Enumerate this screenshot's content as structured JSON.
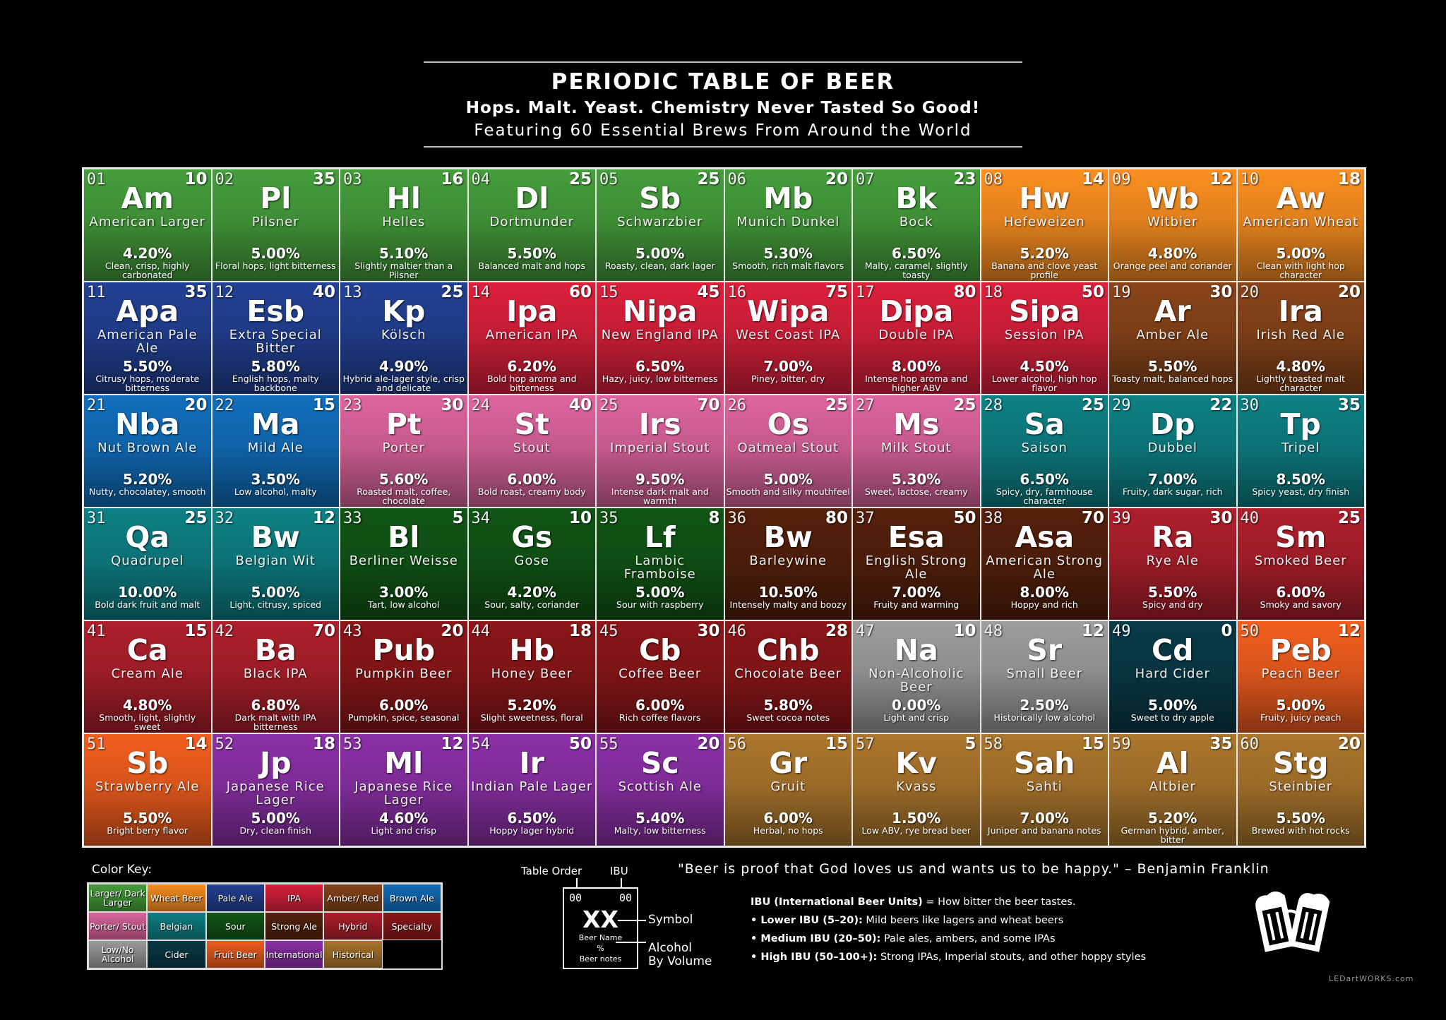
{
  "header": {
    "title": "PERIODIC TABLE OF BEER",
    "subtitle": "Hops. Malt. Yeast. Chemistry Never Tasted So Good!",
    "tagline": "Featuring 60 Essential Brews From Around the World"
  },
  "category_colors": {
    "larger": "#3e8d35",
    "wheat": "#e0801d",
    "pale": "#1f3a85",
    "ipa": "#c41d36",
    "amber": "#7a3d17",
    "brown": "#0f63a8",
    "porter": "#c65a8d",
    "belgian": "#0c7377",
    "sour": "#0f4d14",
    "strong": "#4b1d0a",
    "hybrid": "#9b1c27",
    "specialty": "#7d1416",
    "lowno": "#8d8d8d",
    "cider": "#083440",
    "fruit": "#d8541b",
    "international": "#7d2b96",
    "historical": "#9a6a28"
  },
  "beers": [
    {
      "num": "01",
      "ibu": "10",
      "sym": "Am",
      "name": "American Larger",
      "abv": "4.20%",
      "notes": "Clean, crisp, highly carbonated",
      "cat": "larger"
    },
    {
      "num": "02",
      "ibu": "35",
      "sym": "Pl",
      "name": "Pilsner",
      "abv": "5.00%",
      "notes": "Floral hops, light bitterness",
      "cat": "larger"
    },
    {
      "num": "03",
      "ibu": "16",
      "sym": "Hl",
      "name": "Helles",
      "abv": "5.10%",
      "notes": "Slightly maltier than a Pilsner",
      "cat": "larger"
    },
    {
      "num": "04",
      "ibu": "25",
      "sym": "Dl",
      "name": "Dortmunder",
      "abv": "5.50%",
      "notes": "Balanced malt and hops",
      "cat": "larger"
    },
    {
      "num": "05",
      "ibu": "25",
      "sym": "Sb",
      "name": "Schwarzbier",
      "abv": "5.00%",
      "notes": "Roasty, clean, dark lager",
      "cat": "larger"
    },
    {
      "num": "06",
      "ibu": "20",
      "sym": "Mb",
      "name": "Munich Dunkel",
      "abv": "5.30%",
      "notes": "Smooth, rich malt flavors",
      "cat": "larger"
    },
    {
      "num": "07",
      "ibu": "23",
      "sym": "Bk",
      "name": "Bock",
      "abv": "6.50%",
      "notes": "Malty, caramel, slightly toasty",
      "cat": "larger"
    },
    {
      "num": "08",
      "ibu": "14",
      "sym": "Hw",
      "name": "Hefeweizen",
      "abv": "5.20%",
      "notes": "Banana and clove yeast profile",
      "cat": "wheat"
    },
    {
      "num": "09",
      "ibu": "12",
      "sym": "Wb",
      "name": "Witbier",
      "abv": "4.80%",
      "notes": "Orange peel and coriander",
      "cat": "wheat"
    },
    {
      "num": "10",
      "ibu": "18",
      "sym": "Aw",
      "name": "American Wheat",
      "abv": "5.00%",
      "notes": "Clean with light hop character",
      "cat": "wheat"
    },
    {
      "num": "11",
      "ibu": "35",
      "sym": "Apa",
      "name": "American Pale Ale",
      "abv": "5.50%",
      "notes": "Citrusy hops, moderate bitterness",
      "cat": "pale"
    },
    {
      "num": "12",
      "ibu": "40",
      "sym": "Esb",
      "name": "Extra Special Bitter",
      "abv": "5.80%",
      "notes": "English hops, malty backbone",
      "cat": "pale"
    },
    {
      "num": "13",
      "ibu": "25",
      "sym": "Kp",
      "name": "Kölsch",
      "abv": "4.90%",
      "notes": "Hybrid ale-lager style, crisp and delicate",
      "cat": "pale"
    },
    {
      "num": "14",
      "ibu": "60",
      "sym": "Ipa",
      "name": "American IPA",
      "abv": "6.20%",
      "notes": "Bold hop aroma and bitterness",
      "cat": "ipa"
    },
    {
      "num": "15",
      "ibu": "45",
      "sym": "Nipa",
      "name": "New England IPA",
      "abv": "6.50%",
      "notes": "Hazy, juicy, low bitterness",
      "cat": "ipa"
    },
    {
      "num": "16",
      "ibu": "75",
      "sym": "Wipa",
      "name": "West Coast IPA",
      "abv": "7.00%",
      "notes": "Piney, bitter, dry",
      "cat": "ipa"
    },
    {
      "num": "17",
      "ibu": "80",
      "sym": "Dipa",
      "name": "Double IPA",
      "abv": "8.00%",
      "notes": "Intense hop aroma and higher ABV",
      "cat": "ipa"
    },
    {
      "num": "18",
      "ibu": "50",
      "sym": "Sipa",
      "name": "Session IPA",
      "abv": "4.50%",
      "notes": "Lower alcohol, high hop flavor",
      "cat": "ipa"
    },
    {
      "num": "19",
      "ibu": "30",
      "sym": "Ar",
      "name": "Amber Ale",
      "abv": "5.50%",
      "notes": "Toasty malt, balanced hops",
      "cat": "amber"
    },
    {
      "num": "20",
      "ibu": "20",
      "sym": "Ira",
      "name": "Irish Red Ale",
      "abv": "4.80%",
      "notes": "Lightly toasted malt character",
      "cat": "amber"
    },
    {
      "num": "21",
      "ibu": "20",
      "sym": "Nba",
      "name": "Nut Brown Ale",
      "abv": "5.20%",
      "notes": "Nutty, chocolatey, smooth",
      "cat": "brown"
    },
    {
      "num": "22",
      "ibu": "15",
      "sym": "Ma",
      "name": "Mild Ale",
      "abv": "3.50%",
      "notes": "Low alcohol, malty",
      "cat": "brown"
    },
    {
      "num": "23",
      "ibu": "30",
      "sym": "Pt",
      "name": "Porter",
      "abv": "5.60%",
      "notes": "Roasted malt, coffee, chocolate",
      "cat": "porter"
    },
    {
      "num": "24",
      "ibu": "40",
      "sym": "St",
      "name": "Stout",
      "abv": "6.00%",
      "notes": "Bold roast, creamy body",
      "cat": "porter"
    },
    {
      "num": "25",
      "ibu": "70",
      "sym": "Irs",
      "name": "Imperial Stout",
      "abv": "9.50%",
      "notes": "Intense dark malt and warmth",
      "cat": "porter"
    },
    {
      "num": "26",
      "ibu": "25",
      "sym": "Os",
      "name": "Oatmeal Stout",
      "abv": "5.00%",
      "notes": "Smooth and silky mouthfeel",
      "cat": "porter"
    },
    {
      "num": "27",
      "ibu": "25",
      "sym": "Ms",
      "name": "Milk Stout",
      "abv": "5.30%",
      "notes": "Sweet, lactose, creamy",
      "cat": "porter"
    },
    {
      "num": "28",
      "ibu": "25",
      "sym": "Sa",
      "name": "Saison",
      "abv": "6.50%",
      "notes": "Spicy, dry, farmhouse character",
      "cat": "belgian"
    },
    {
      "num": "29",
      "ibu": "22",
      "sym": "Dp",
      "name": "Dubbel",
      "abv": "7.00%",
      "notes": "Fruity, dark sugar, rich",
      "cat": "belgian"
    },
    {
      "num": "30",
      "ibu": "35",
      "sym": "Tp",
      "name": "Tripel",
      "abv": "8.50%",
      "notes": "Spicy yeast, dry finish",
      "cat": "belgian"
    },
    {
      "num": "31",
      "ibu": "25",
      "sym": "Qa",
      "name": "Quadrupel",
      "abv": "10.00%",
      "notes": "Bold dark fruit and malt",
      "cat": "belgian"
    },
    {
      "num": "32",
      "ibu": "12",
      "sym": "Bw",
      "name": "Belgian Wit",
      "abv": "5.00%",
      "notes": "Light, citrusy, spiced",
      "cat": "belgian"
    },
    {
      "num": "33",
      "ibu": "5",
      "sym": "Bl",
      "name": "Berliner Weisse",
      "abv": "3.00%",
      "notes": "Tart, low alcohol",
      "cat": "sour"
    },
    {
      "num": "34",
      "ibu": "10",
      "sym": "Gs",
      "name": "Gose",
      "abv": "4.20%",
      "notes": "Sour, salty, coriander",
      "cat": "sour"
    },
    {
      "num": "35",
      "ibu": "8",
      "sym": "Lf",
      "name": "Lambic Framboise",
      "abv": "5.00%",
      "notes": "Sour with raspberry",
      "cat": "sour"
    },
    {
      "num": "36",
      "ibu": "80",
      "sym": "Bw",
      "name": "Barleywine",
      "abv": "10.50%",
      "notes": "Intensely malty and boozy",
      "cat": "strong"
    },
    {
      "num": "37",
      "ibu": "50",
      "sym": "Esa",
      "name": "English Strong Ale",
      "abv": "7.00%",
      "notes": "Fruity and warming",
      "cat": "strong"
    },
    {
      "num": "38",
      "ibu": "70",
      "sym": "Asa",
      "name": "American Strong Ale",
      "abv": "8.00%",
      "notes": "Hoppy and rich",
      "cat": "strong"
    },
    {
      "num": "39",
      "ibu": "30",
      "sym": "Ra",
      "name": "Rye Ale",
      "abv": "5.50%",
      "notes": "Spicy and dry",
      "cat": "hybrid"
    },
    {
      "num": "40",
      "ibu": "25",
      "sym": "Sm",
      "name": "Smoked Beer",
      "abv": "6.00%",
      "notes": "Smoky and savory",
      "cat": "hybrid"
    },
    {
      "num": "41",
      "ibu": "15",
      "sym": "Ca",
      "name": "Cream Ale",
      "abv": "4.80%",
      "notes": "Smooth, light, slightly sweet",
      "cat": "hybrid"
    },
    {
      "num": "42",
      "ibu": "70",
      "sym": "Ba",
      "name": "Black IPA",
      "abv": "6.80%",
      "notes": "Dark malt with IPA bitterness",
      "cat": "hybrid"
    },
    {
      "num": "43",
      "ibu": "20",
      "sym": "Pub",
      "name": "Pumpkin Beer",
      "abv": "6.00%",
      "notes": "Pumpkin, spice, seasonal",
      "cat": "specialty"
    },
    {
      "num": "44",
      "ibu": "18",
      "sym": "Hb",
      "name": "Honey Beer",
      "abv": "5.20%",
      "notes": "Slight sweetness, floral",
      "cat": "specialty"
    },
    {
      "num": "45",
      "ibu": "30",
      "sym": "Cb",
      "name": "Coffee Beer",
      "abv": "6.00%",
      "notes": "Rich coffee flavors",
      "cat": "specialty"
    },
    {
      "num": "46",
      "ibu": "28",
      "sym": "Chb",
      "name": "Chocolate Beer",
      "abv": "5.80%",
      "notes": "Sweet cocoa notes",
      "cat": "specialty"
    },
    {
      "num": "47",
      "ibu": "10",
      "sym": "Na",
      "name": "Non-Alcoholic Beer",
      "abv": "0.00%",
      "notes": "Light and crisp",
      "cat": "lowno"
    },
    {
      "num": "48",
      "ibu": "12",
      "sym": "Sr",
      "name": "Small Beer",
      "abv": "2.50%",
      "notes": "Historically low alcohol",
      "cat": "lowno"
    },
    {
      "num": "49",
      "ibu": "0",
      "sym": "Cd",
      "name": "Hard Cider",
      "abv": "5.00%",
      "notes": "Sweet to dry apple",
      "cat": "cider"
    },
    {
      "num": "50",
      "ibu": "12",
      "sym": "Peb",
      "name": "Peach Beer",
      "abv": "5.00%",
      "notes": "Fruity, juicy peach",
      "cat": "fruit"
    },
    {
      "num": "51",
      "ibu": "14",
      "sym": "Sb",
      "name": "Strawberry Ale",
      "abv": "5.50%",
      "notes": "Bright berry flavor",
      "cat": "fruit"
    },
    {
      "num": "52",
      "ibu": "18",
      "sym": "Jp",
      "name": "Japanese Rice Lager",
      "abv": "5.00%",
      "notes": "Dry, clean finish",
      "cat": "international"
    },
    {
      "num": "53",
      "ibu": "12",
      "sym": "Ml",
      "name": "Japanese Rice Lager",
      "abv": "4.60%",
      "notes": "Light and crisp",
      "cat": "international"
    },
    {
      "num": "54",
      "ibu": "50",
      "sym": "Ir",
      "name": "Indian Pale Lager",
      "abv": "6.50%",
      "notes": "Hoppy lager hybrid",
      "cat": "international"
    },
    {
      "num": "55",
      "ibu": "20",
      "sym": "Sc",
      "name": "Scottish Ale",
      "abv": "5.40%",
      "notes": "Malty, low bitterness",
      "cat": "international"
    },
    {
      "num": "56",
      "ibu": "15",
      "sym": "Gr",
      "name": "Gruit",
      "abv": "6.00%",
      "notes": "Herbal, no hops",
      "cat": "historical"
    },
    {
      "num": "57",
      "ibu": "5",
      "sym": "Kv",
      "name": "Kvass",
      "abv": "1.50%",
      "notes": "Low ABV, rye bread beer",
      "cat": "historical"
    },
    {
      "num": "58",
      "ibu": "15",
      "sym": "Sah",
      "name": "Sahti",
      "abv": "7.00%",
      "notes": "Juniper and banana notes",
      "cat": "historical"
    },
    {
      "num": "59",
      "ibu": "35",
      "sym": "Al",
      "name": "Altbier",
      "abv": "5.20%",
      "notes": "German hybrid, amber, bitter",
      "cat": "historical"
    },
    {
      "num": "60",
      "ibu": "20",
      "sym": "Stg",
      "name": "Steinbier",
      "abv": "5.50%",
      "notes": "Brewed with hot rocks",
      "cat": "historical"
    }
  ],
  "color_key": {
    "title": "Color Key:",
    "items": [
      {
        "label": "Larger/ Dark Larger",
        "cat": "larger"
      },
      {
        "label": "Wheat Beer",
        "cat": "wheat"
      },
      {
        "label": "Pale Ale",
        "cat": "pale"
      },
      {
        "label": "IPA",
        "cat": "ipa"
      },
      {
        "label": "Amber/ Red",
        "cat": "amber"
      },
      {
        "label": "Brown Ale",
        "cat": "brown"
      },
      {
        "label": "Porter/ Stout",
        "cat": "porter"
      },
      {
        "label": "Belgian",
        "cat": "belgian"
      },
      {
        "label": "Sour",
        "cat": "sour"
      },
      {
        "label": "Strong Ale",
        "cat": "strong"
      },
      {
        "label": "Hybrid",
        "cat": "hybrid"
      },
      {
        "label": "Specialty",
        "cat": "specialty"
      },
      {
        "label": "Low/No Alcohol",
        "cat": "lowno"
      },
      {
        "label": "Cider",
        "cat": "cider"
      },
      {
        "label": "Fruit Beer",
        "cat": "fruit"
      },
      {
        "label": "International",
        "cat": "international"
      },
      {
        "label": "Historical",
        "cat": "historical"
      }
    ]
  },
  "legend": {
    "table_order": "Table Order",
    "ibu": "IBU",
    "num_left": "00",
    "num_right": "00",
    "symbol": "XX",
    "beer_name": "Beer Name",
    "percent": "%",
    "beer_notes": "Beer notes",
    "symbol_label": "Symbol",
    "abv_label_1": "Alcohol",
    "abv_label_2": "By Volume"
  },
  "quote": "\"Beer is proof that God loves us and wants us to be happy.\" – Benjamin Franklin",
  "ibu_info": {
    "intro_bold": "IBU (International Beer Units)",
    "intro_text": " = How bitter the beer tastes.",
    "lines": [
      {
        "bold": "• Lower IBU (5–20):",
        "text": " Mild beers like lagers and wheat beers"
      },
      {
        "bold": "• Medium IBU (20–50):",
        "text": " Pale ales, ambers, and some IPAs"
      },
      {
        "bold": "• High IBU (50–100+):",
        "text": " Strong IPAs, Imperial stouts, and other hoppy styles"
      }
    ]
  },
  "credit": "LEDartWORKS.com"
}
